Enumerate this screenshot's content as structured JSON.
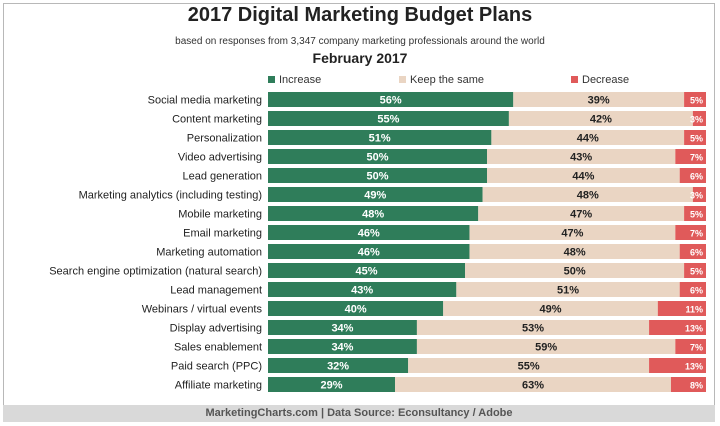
{
  "chart_data": {
    "type": "bar",
    "stacked": true,
    "title": "2017 Digital Marketing Budget Plans",
    "subtitle": "based on responses from 3,347 company marketing professionals around the world",
    "date_label": "February 2017",
    "categories": [
      "Social media marketing",
      "Content marketing",
      "Personalization",
      "Video advertising",
      "Lead generation",
      "Marketing analytics (including testing)",
      "Mobile marketing",
      "Email marketing",
      "Marketing automation",
      "Search engine optimization (natural search)",
      "Lead management",
      "Webinars / virtual events",
      "Display advertising",
      "Sales enablement",
      "Paid search (PPC)",
      "Affiliate marketing"
    ],
    "series": [
      {
        "name": "Increase",
        "color": "#2f7d5a",
        "values": [
          56,
          55,
          51,
          50,
          50,
          49,
          48,
          46,
          46,
          45,
          43,
          40,
          34,
          34,
          32,
          29
        ]
      },
      {
        "name": "Keep the same",
        "color": "#ead5c3",
        "values": [
          39,
          42,
          44,
          43,
          44,
          48,
          47,
          47,
          48,
          50,
          51,
          49,
          53,
          59,
          55,
          63
        ]
      },
      {
        "name": "Decrease",
        "color": "#e05a5a",
        "values": [
          5,
          3,
          5,
          7,
          6,
          3,
          5,
          7,
          6,
          5,
          6,
          11,
          13,
          7,
          13,
          8
        ]
      }
    ],
    "value_suffix": "%",
    "xlim": [
      0,
      100
    ],
    "legend_position": "top"
  },
  "footer": "MarketingCharts.com | Data Source: Econsultancy / Adobe"
}
